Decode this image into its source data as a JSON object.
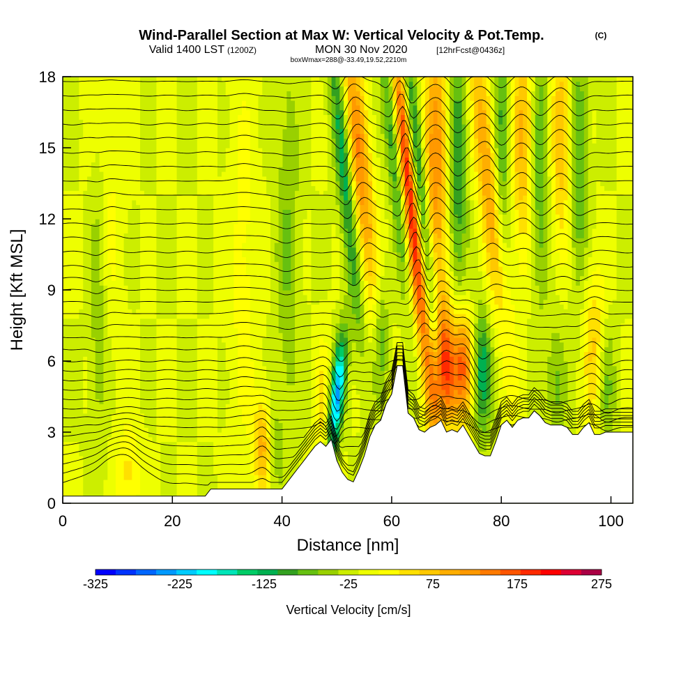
{
  "chart_data": {
    "type": "heatmap",
    "title": "Wind-Parallel Section at Max W: Vertical Velocity & Pot.Temp.",
    "title_mark": "(C)",
    "subtitle_main": "Valid 1400 LST",
    "subtitle_utc": "(1200Z)",
    "subtitle_date": "MON 30 Nov 2020",
    "subtitle_fcst": "[12hrFcst@0436z]",
    "subtitle_box": "boxWmax=288@-33.49,19.52,2210m",
    "xlabel": "Distance [nm]",
    "ylabel": "Height [Kft MSL]",
    "xlim": [
      0,
      104
    ],
    "ylim": [
      0,
      18
    ],
    "x_ticks": [
      0,
      20,
      40,
      60,
      80,
      100
    ],
    "y_ticks": [
      0,
      3,
      6,
      9,
      12,
      15,
      18
    ],
    "colorbar": {
      "label": "Vertical Velocity [cm/s]",
      "min": -325,
      "max": 275,
      "step": 25,
      "tick_labels": [
        "-325",
        "-225",
        "-125",
        "-25",
        "75",
        "175",
        "275"
      ],
      "tick_values": [
        -325,
        -225,
        -125,
        -25,
        75,
        175,
        275
      ],
      "colors": [
        "#0000ff",
        "#0033ff",
        "#0066ff",
        "#0099ff",
        "#00ccff",
        "#00ffff",
        "#00e5b8",
        "#00cc66",
        "#00b050",
        "#33a020",
        "#66c010",
        "#99d000",
        "#ccee00",
        "#eeff00",
        "#ffff00",
        "#ffe000",
        "#ffc800",
        "#ffae00",
        "#ff9900",
        "#ff7a00",
        "#ff5500",
        "#ff2a00",
        "#ff0000",
        "#dd0033",
        "#aa0044"
      ]
    },
    "terrain": [
      [
        0,
        0.3
      ],
      [
        26,
        0.3
      ],
      [
        27,
        0.6
      ],
      [
        40,
        0.6
      ],
      [
        41,
        0.9
      ],
      [
        42,
        1.2
      ],
      [
        43,
        1.5
      ],
      [
        44,
        1.8
      ],
      [
        45,
        2.1
      ],
      [
        46,
        2.4
      ],
      [
        47,
        2.6
      ],
      [
        48,
        2.4
      ],
      [
        49,
        2.7
      ],
      [
        50,
        1.8
      ],
      [
        51,
        1.3
      ],
      [
        52,
        1.0
      ],
      [
        53,
        0.9
      ],
      [
        54,
        1.4
      ],
      [
        55,
        2.0
      ],
      [
        56,
        2.8
      ],
      [
        57,
        3.3
      ],
      [
        58,
        3.5
      ],
      [
        59,
        4.2
      ],
      [
        60,
        4.6
      ],
      [
        61,
        5.8
      ],
      [
        62,
        5.8
      ],
      [
        63,
        3.8
      ],
      [
        64,
        3.6
      ],
      [
        65,
        3.1
      ],
      [
        66,
        3.0
      ],
      [
        67,
        3.2
      ],
      [
        68,
        3.3
      ],
      [
        69,
        3.5
      ],
      [
        70,
        3.0
      ],
      [
        71,
        3.1
      ],
      [
        72,
        3.0
      ],
      [
        73,
        3.3
      ],
      [
        74,
        2.9
      ],
      [
        75,
        2.5
      ],
      [
        76,
        2.1
      ],
      [
        77,
        2.0
      ],
      [
        78,
        2.0
      ],
      [
        79,
        2.6
      ],
      [
        80,
        3.3
      ],
      [
        81,
        3.5
      ],
      [
        82,
        3.2
      ],
      [
        83,
        3.5
      ],
      [
        84,
        3.6
      ],
      [
        85,
        3.6
      ],
      [
        86,
        3.9
      ],
      [
        87,
        3.7
      ],
      [
        88,
        3.4
      ],
      [
        89,
        3.3
      ],
      [
        90,
        3.3
      ],
      [
        91,
        3.3
      ],
      [
        92,
        3.2
      ],
      [
        93,
        2.9
      ],
      [
        94,
        2.9
      ],
      [
        95,
        3.2
      ],
      [
        96,
        3.4
      ],
      [
        97,
        2.9
      ],
      [
        98,
        2.9
      ],
      [
        99,
        3.0
      ],
      [
        100,
        3.0
      ],
      [
        104,
        3.0
      ]
    ],
    "updrafts": [
      {
        "x": 63.5,
        "y": 13.0,
        "strength": 275,
        "xspread": 1.2,
        "yspread": 5.5,
        "tilt": -0.11
      },
      {
        "x": 69.5,
        "y": 5.5,
        "strength": 230,
        "xspread": 1.6,
        "yspread": 2.0,
        "tilt": 0.0
      },
      {
        "x": 73.0,
        "y": 5.8,
        "strength": 180,
        "xspread": 1.3,
        "yspread": 1.6,
        "tilt": 0.0
      },
      {
        "x": 54.0,
        "y": 14.5,
        "strength": 150,
        "xspread": 1.5,
        "yspread": 4.5,
        "tilt": -0.1
      },
      {
        "x": 68.0,
        "y": 14.0,
        "strength": 140,
        "xspread": 1.6,
        "yspread": 5.0,
        "tilt": 0.0
      },
      {
        "x": 78.0,
        "y": 13.0,
        "strength": 135,
        "xspread": 1.5,
        "yspread": 5.0,
        "tilt": -0.1
      },
      {
        "x": 84.0,
        "y": 15.5,
        "strength": 110,
        "xspread": 1.6,
        "yspread": 3.5,
        "tilt": 0.0
      },
      {
        "x": 91.0,
        "y": 15.5,
        "strength": 100,
        "xspread": 1.5,
        "yspread": 3.5,
        "tilt": 0.0
      },
      {
        "x": 97.0,
        "y": 6.5,
        "strength": 85,
        "xspread": 1.5,
        "yspread": 2.5,
        "tilt": 0.0
      },
      {
        "x": 36.5,
        "y": 2.5,
        "strength": 110,
        "xspread": 1.2,
        "yspread": 1.4,
        "tilt": 0.0
      },
      {
        "x": 12.0,
        "y": 1.2,
        "strength": 60,
        "xspread": 1.5,
        "yspread": 1.5,
        "tilt": 0.0
      },
      {
        "x": 8.0,
        "y": 13.0,
        "strength": 35,
        "xspread": 2.0,
        "yspread": 5.0,
        "tilt": 0.0
      },
      {
        "x": 33.0,
        "y": 10.0,
        "strength": 35,
        "xspread": 2.0,
        "yspread": 6.0,
        "tilt": 0.0
      },
      {
        "x": 47.5,
        "y": 4.0,
        "strength": 60,
        "xspread": 1.0,
        "yspread": 2.0,
        "tilt": 0.0
      }
    ],
    "downdrafts": [
      {
        "x": 65.5,
        "y": 12.0,
        "strength": -200,
        "xspread": 1.0,
        "yspread": 6.5,
        "tilt": -0.11
      },
      {
        "x": 50.0,
        "y": 4.5,
        "strength": -230,
        "xspread": 0.9,
        "yspread": 1.8,
        "tilt": 0.1
      },
      {
        "x": 51.5,
        "y": 14.0,
        "strength": -130,
        "xspread": 1.1,
        "yspread": 5.0,
        "tilt": -0.1
      },
      {
        "x": 60.5,
        "y": 15.0,
        "strength": -120,
        "xspread": 1.0,
        "yspread": 4.5,
        "tilt": -0.1
      },
      {
        "x": 76.5,
        "y": 5.5,
        "strength": -130,
        "xspread": 1.2,
        "yspread": 1.8,
        "tilt": 0.0
      },
      {
        "x": 72.0,
        "y": 14.0,
        "strength": -100,
        "xspread": 1.2,
        "yspread": 4.5,
        "tilt": 0.0
      },
      {
        "x": 80.0,
        "y": 14.5,
        "strength": -95,
        "xspread": 1.2,
        "yspread": 4.5,
        "tilt": 0.0
      },
      {
        "x": 87.0,
        "y": 14.5,
        "strength": -90,
        "xspread": 1.3,
        "yspread": 4.0,
        "tilt": 0.0
      },
      {
        "x": 94.0,
        "y": 14.5,
        "strength": -85,
        "xspread": 1.3,
        "yspread": 4.0,
        "tilt": 0.0
      },
      {
        "x": 99.0,
        "y": 5.0,
        "strength": -70,
        "xspread": 1.2,
        "yspread": 2.0,
        "tilt": 0.0
      },
      {
        "x": 41.0,
        "y": 11.0,
        "strength": -50,
        "xspread": 1.5,
        "yspread": 6.0,
        "tilt": 0.0
      },
      {
        "x": 6.5,
        "y": 9.0,
        "strength": -55,
        "xspread": 1.2,
        "yspread": 5.0,
        "tilt": 0.0
      },
      {
        "x": 58.0,
        "y": 7.0,
        "strength": -80,
        "xspread": 1.0,
        "yspread": 2.0,
        "tilt": 0.0
      },
      {
        "x": 90.0,
        "y": 5.0,
        "strength": -60,
        "xspread": 1.2,
        "yspread": 2.0,
        "tilt": 0.0
      },
      {
        "x": 38.5,
        "y": 2.5,
        "strength": -40,
        "xspread": 1.0,
        "yspread": 1.5,
        "tilt": 0.0
      }
    ],
    "isentrope_base_heights": [
      0.8,
      1.2,
      1.6,
      2.0,
      2.4,
      2.8,
      3.2,
      3.6,
      4.0,
      4.4,
      4.8,
      5.2,
      5.6,
      6.0,
      6.5,
      7.0,
      7.5,
      8.0,
      8.5,
      9.0,
      9.5,
      10.0,
      10.6,
      11.2,
      11.8,
      12.4,
      13.0,
      13.6,
      14.2,
      14.8,
      15.4,
      16.0,
      16.6,
      17.2,
      17.8
    ]
  }
}
